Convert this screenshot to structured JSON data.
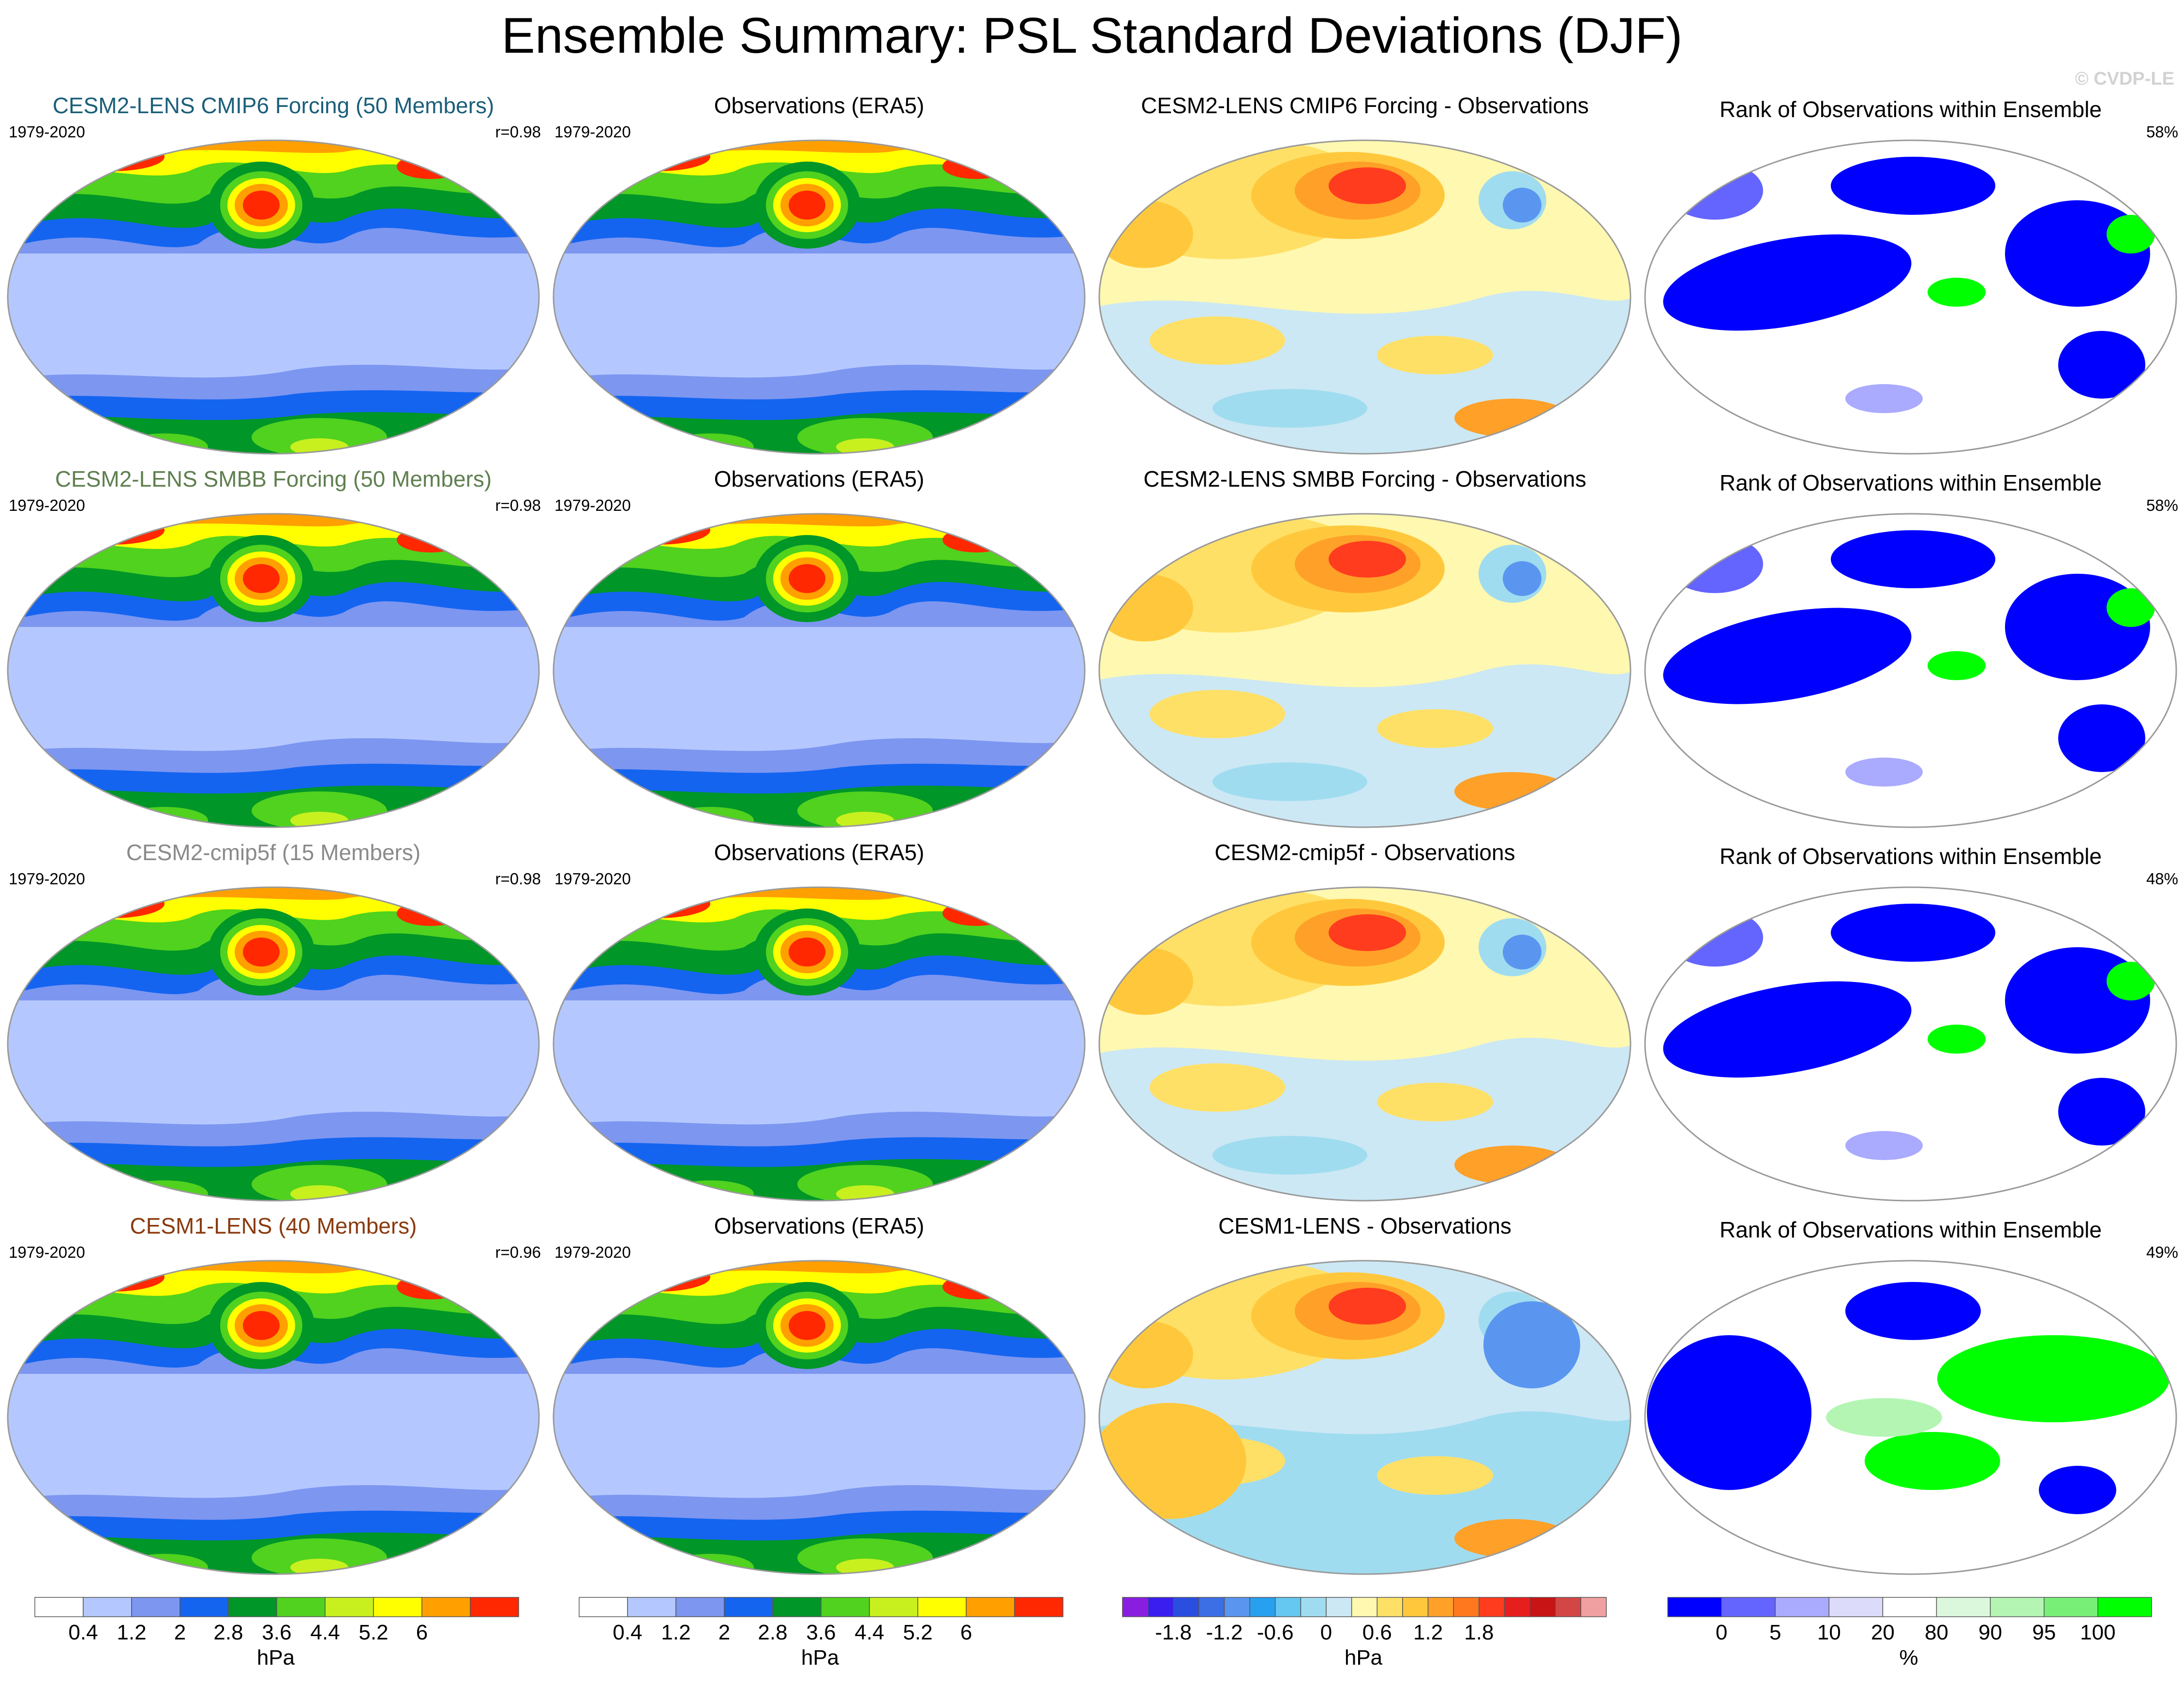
{
  "title": "Ensemble Summary: PSL Standard Deviations (DJF)",
  "credit": "© CVDP-LE",
  "rows": [
    {
      "model": {
        "title": "CESM2-LENS CMIP6 Forcing (50 Members)",
        "title_color": "#1a5f7a",
        "period": "1979-2020",
        "r": "r=0.98"
      },
      "obs": {
        "title": "Observations (ERA5)",
        "period": "1979-2020"
      },
      "diff": {
        "title": "CESM2-LENS CMIP6 Forcing - Observations"
      },
      "rank": {
        "title": "Rank of Observations within Ensemble",
        "pct": "58%"
      }
    },
    {
      "model": {
        "title": "CESM2-LENS SMBB Forcing (50 Members)",
        "title_color": "#5f7f4f",
        "period": "1979-2020",
        "r": "r=0.98"
      },
      "obs": {
        "title": "Observations (ERA5)",
        "period": "1979-2020"
      },
      "diff": {
        "title": "CESM2-LENS SMBB Forcing - Observations"
      },
      "rank": {
        "title": "Rank of Observations within Ensemble",
        "pct": "58%"
      }
    },
    {
      "model": {
        "title": "CESM2-cmip5f (15 Members)",
        "title_color": "#8a8a8a",
        "period": "1979-2020",
        "r": "r=0.98"
      },
      "obs": {
        "title": "Observations (ERA5)",
        "period": "1979-2020"
      },
      "diff": {
        "title": "CESM2-cmip5f - Observations"
      },
      "rank": {
        "title": "Rank of Observations within Ensemble",
        "pct": "48%"
      }
    },
    {
      "model": {
        "title": "CESM1-LENS (40 Members)",
        "title_color": "#8a3a0e",
        "period": "1979-2020",
        "r": "r=0.96"
      },
      "obs": {
        "title": "Observations (ERA5)",
        "period": "1979-2020"
      },
      "diff": {
        "title": "CESM1-LENS - Observations"
      },
      "rank": {
        "title": "Rank of Observations within Ensemble",
        "pct": "49%"
      }
    }
  ],
  "colorbars": [
    {
      "name": "std",
      "unit": "hPa",
      "colors": [
        "#ffffff",
        "#b4c8ff",
        "#7d96f0",
        "#1464f0",
        "#009628",
        "#50d21e",
        "#c8f01e",
        "#ffff00",
        "#ffa000",
        "#ff2800"
      ],
      "ticks": [
        "0.4",
        "1.2",
        "2",
        "2.8",
        "3.6",
        "4.4",
        "5.2",
        "6"
      ]
    },
    {
      "name": "std-obs",
      "unit": "hPa",
      "colors": [
        "#ffffff",
        "#b4c8ff",
        "#7d96f0",
        "#1464f0",
        "#009628",
        "#50d21e",
        "#c8f01e",
        "#ffff00",
        "#ffa000",
        "#ff2800"
      ],
      "ticks": [
        "0.4",
        "1.2",
        "2",
        "2.8",
        "3.6",
        "4.4",
        "5.2",
        "6"
      ]
    },
    {
      "name": "diff",
      "unit": "hPa",
      "colors": [
        "#8a1ee0",
        "#3a1ef0",
        "#2a4ee0",
        "#3c6ee6",
        "#5a96f0",
        "#28a0f0",
        "#64c8f0",
        "#a0dcf0",
        "#cce8f4",
        "#fff8b0",
        "#ffe066",
        "#ffc83c",
        "#ffa028",
        "#ff781e",
        "#ff3c1e",
        "#e61e1e",
        "#c81414",
        "#d24646",
        "#f0a0a0"
      ],
      "ticks": [
        "-1.8",
        "-1.2",
        "-0.6",
        "0",
        "0.6",
        "1.2",
        "1.8"
      ]
    },
    {
      "name": "rank",
      "unit": "%",
      "colors": [
        "#0000ff",
        "#6464ff",
        "#aaaaff",
        "#dcdcfa",
        "#ffffff",
        "#dcf8dc",
        "#b4f5b4",
        "#78f078",
        "#00ff00"
      ],
      "ticks": [
        "0",
        "5",
        "10",
        "20",
        "80",
        "90",
        "95",
        "100"
      ]
    }
  ]
}
